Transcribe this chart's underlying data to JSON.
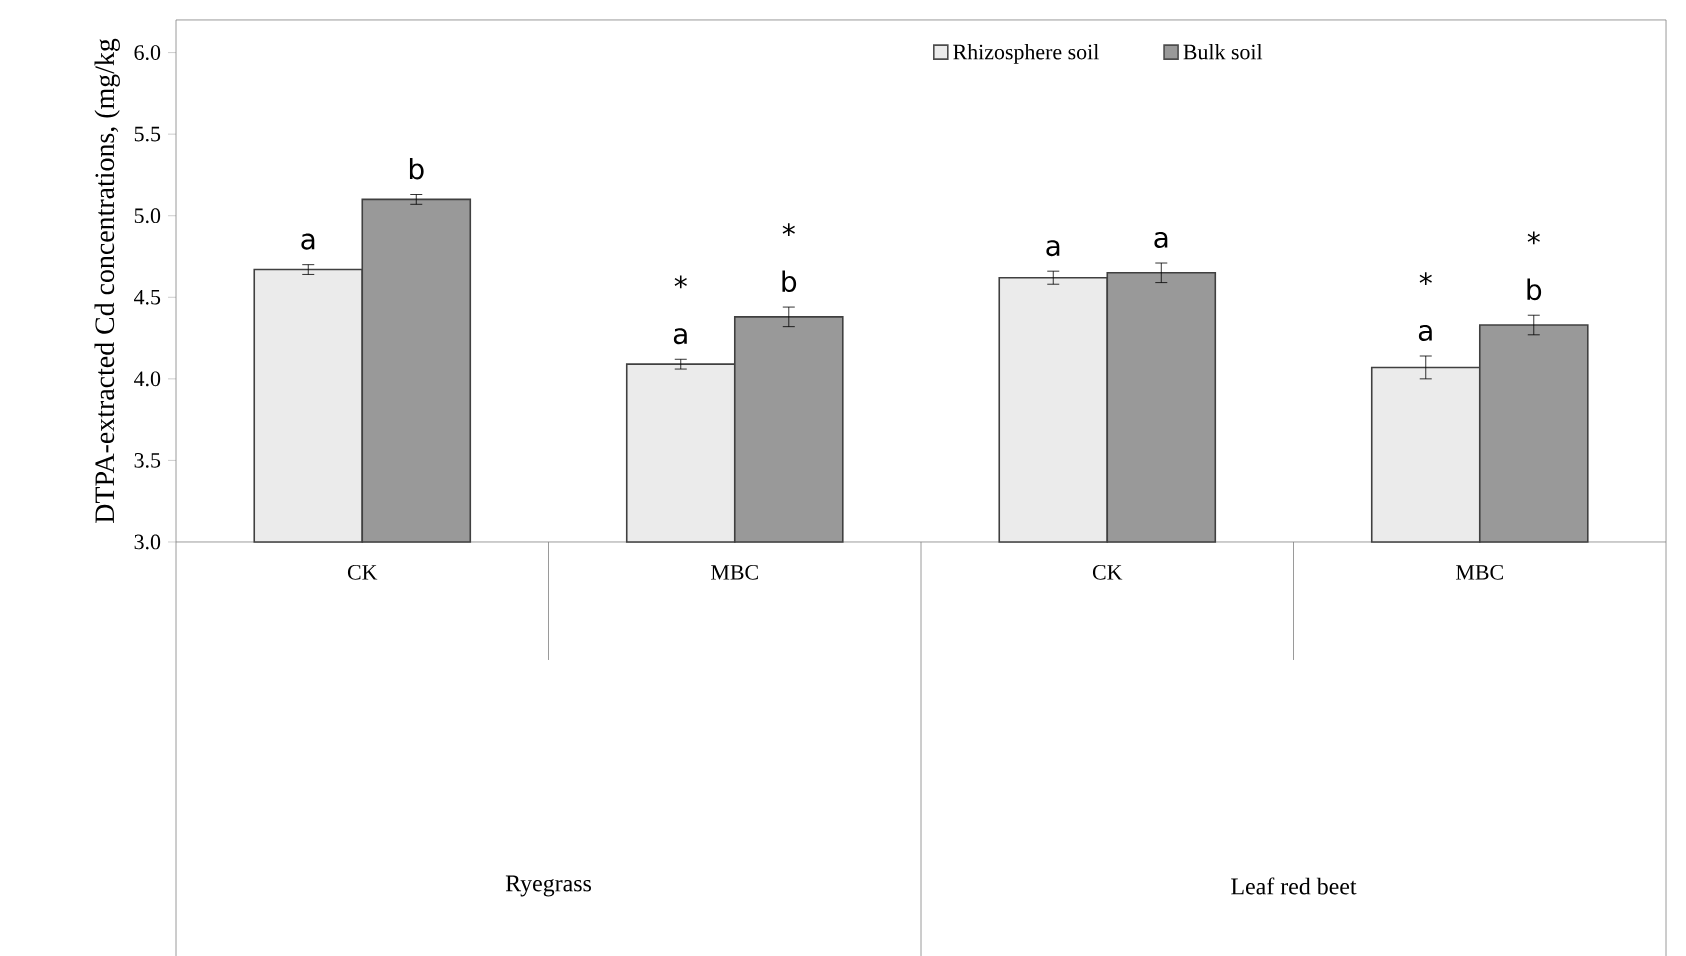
{
  "chart_data": {
    "type": "bar",
    "ylabel": "DTPA-extracted Cd concentrations, (mg/kg",
    "categories": [
      "CK",
      "MBC",
      "CK",
      "MBC"
    ],
    "series": [
      {
        "name": "Rhizosphere soil",
        "color": "#ebebeb",
        "values": [
          4.67,
          4.09,
          4.62,
          4.07
        ],
        "errors": [
          0.03,
          0.03,
          0.04,
          0.07
        ],
        "value_labels": [
          "a",
          "a",
          "a",
          "a"
        ]
      },
      {
        "name": "Bulk soil",
        "color": "#999999",
        "values": [
          5.1,
          4.38,
          4.65,
          4.33
        ],
        "errors": [
          0.03,
          0.06,
          0.06,
          0.06
        ],
        "value_labels": [
          "b",
          "b",
          "a",
          "b"
        ]
      }
    ],
    "annotations": [
      "Ryegrass",
      "Leaf red beet",
      "*",
      "*",
      "*",
      "*"
    ],
    "ylim": [
      3.0,
      6.2
    ],
    "yticks": [
      {
        "value": 3.0,
        "label": "3.0"
      },
      {
        "value": 3.5,
        "label": "3.5"
      },
      {
        "value": 4.0,
        "label": "4.0"
      },
      {
        "value": 4.5,
        "label": "4.5"
      },
      {
        "value": 5.0,
        "label": "5.0"
      },
      {
        "value": 5.5,
        "label": "5.5"
      },
      {
        "value": 6.0,
        "label": "6.0"
      }
    ],
    "legend": "top",
    "grid": false
  }
}
